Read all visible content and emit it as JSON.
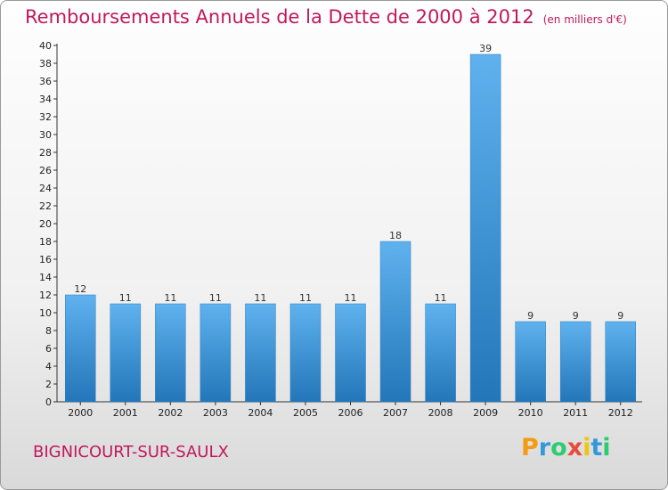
{
  "chart_data": {
    "type": "bar",
    "title": "Remboursements Annuels de la Dette de 2000 à 2012",
    "subtitle": "(en milliers d'€)",
    "categories": [
      "2000",
      "2001",
      "2002",
      "2003",
      "2004",
      "2005",
      "2006",
      "2007",
      "2008",
      "2009",
      "2010",
      "2011",
      "2012"
    ],
    "values": [
      12,
      11,
      11,
      11,
      11,
      11,
      11,
      18,
      11,
      39,
      9,
      9,
      9
    ],
    "ylim": [
      0,
      40
    ],
    "yticks": [
      0,
      2,
      4,
      6,
      8,
      10,
      12,
      14,
      16,
      18,
      20,
      22,
      24,
      26,
      28,
      30,
      32,
      34,
      36,
      38,
      40
    ],
    "grid": false,
    "bar_color": "#3d9be0"
  },
  "footer": {
    "commune": "BIGNICOURT-SUR-SAULX",
    "logo_letters": [
      "P",
      "r",
      "o",
      "x",
      "i",
      "t",
      "i"
    ],
    "logo_colors": [
      "#f39c12",
      "#3498db",
      "#2ecc71",
      "#e74c3c",
      "#f1c40f",
      "#3498db",
      "#2ecc71"
    ]
  }
}
